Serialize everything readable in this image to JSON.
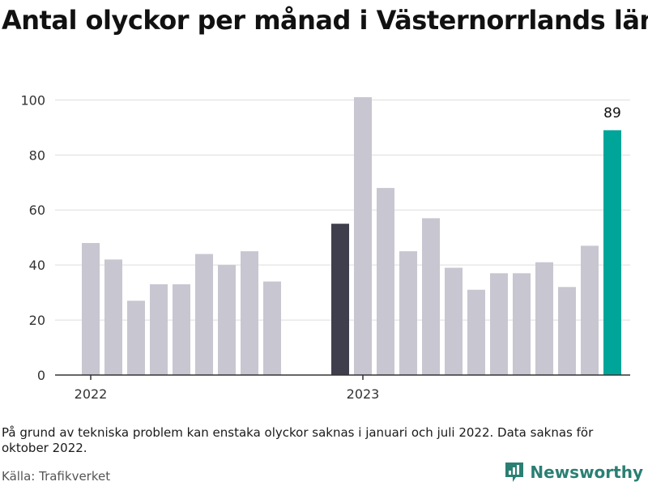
{
  "title": "Antal olyckor per månad i Västernorrlands län",
  "note": "På grund av tekniska problem kan enstaka olyckor saknas i januari och juli 2022. Data saknas för oktober 2022.",
  "source": "Källa: Trafikverket",
  "brand": {
    "name": "Newsworthy",
    "icon": "newsworthy-logo-icon"
  },
  "colors": {
    "default": "#c8c6d0",
    "highlight_prev": "#3f3e4c",
    "highlight_latest": "#00a59a",
    "axis": "#333333",
    "grid": "#dddddd"
  },
  "chart_data": {
    "type": "bar",
    "x": [
      "2022-01",
      "2022-02",
      "2022-03",
      "2022-04",
      "2022-05",
      "2022-06",
      "2022-07",
      "2022-08",
      "2022-09",
      "2022-10",
      "2022-11",
      "2022-12",
      "2023-01",
      "2023-02",
      "2023-03",
      "2023-04",
      "2023-05",
      "2023-06",
      "2023-07",
      "2023-08",
      "2023-09",
      "2023-10",
      "2023-11",
      "2023-12"
    ],
    "values": [
      48,
      42,
      27,
      33,
      33,
      44,
      40,
      45,
      34,
      null,
      null,
      55,
      101,
      68,
      45,
      57,
      39,
      31,
      37,
      37,
      41,
      32,
      47,
      89
    ],
    "bar_colors": [
      "default",
      "default",
      "default",
      "default",
      "default",
      "default",
      "default",
      "default",
      "default",
      null,
      null,
      "highlight_prev",
      "default",
      "default",
      "default",
      "default",
      "default",
      "default",
      "default",
      "default",
      "default",
      "default",
      "default",
      "highlight_latest"
    ],
    "x_tick_labels": [
      {
        "x": "2022-01",
        "label": "2022"
      },
      {
        "x": "2023-01",
        "label": "2023"
      }
    ],
    "y_ticks": [
      0,
      20,
      40,
      60,
      80,
      100
    ],
    "ylim": [
      0,
      101
    ],
    "data_labels": [
      {
        "x": "2023-12",
        "label": "89"
      }
    ],
    "grid": true,
    "xlabel": "",
    "ylabel": ""
  }
}
